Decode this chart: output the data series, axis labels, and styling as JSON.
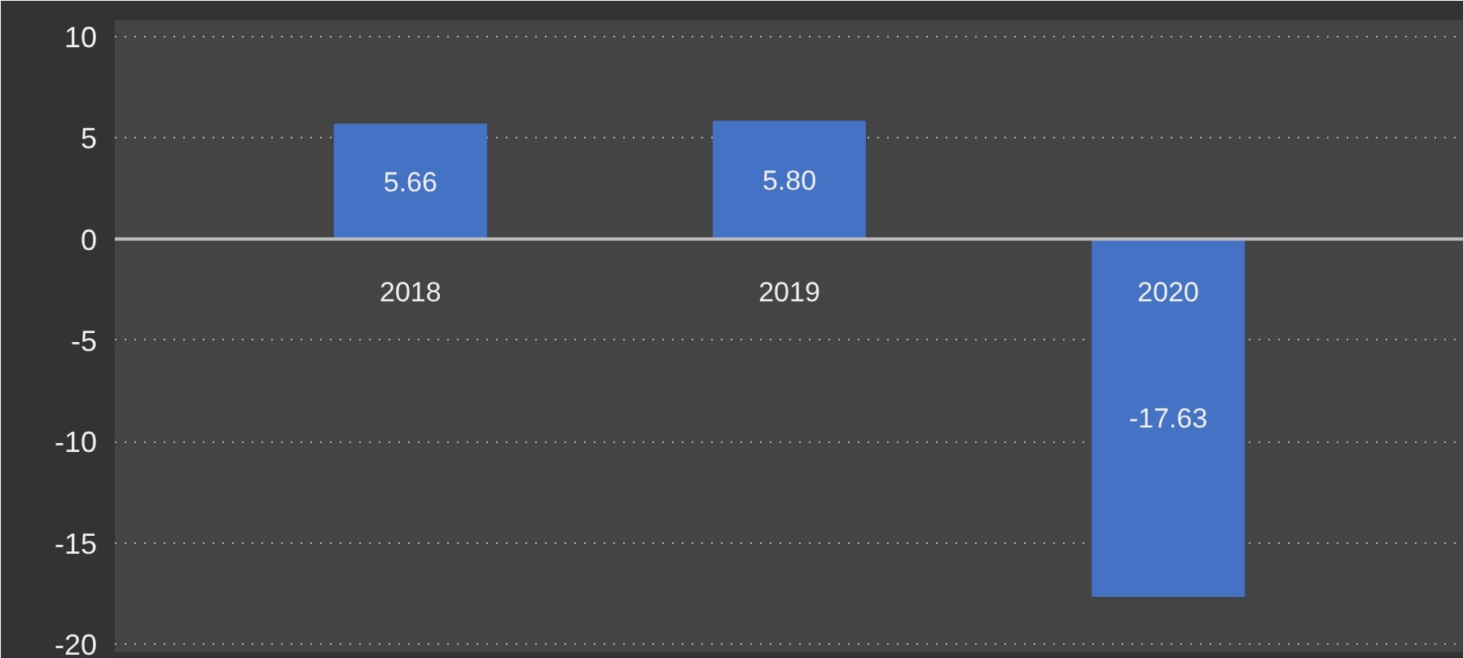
{
  "chart_data": {
    "type": "bar",
    "categories": [
      "2018",
      "2019",
      "2020"
    ],
    "values": [
      5.66,
      5.8,
      -17.63
    ],
    "color": "#4472c4",
    "ylim": [
      -20.4,
      10.8
    ],
    "yticks": [
      -20,
      -15,
      -10,
      -5,
      0,
      5,
      10
    ],
    "grid": "y",
    "value_labels": [
      "5.66",
      "5.80",
      "-17.63"
    ]
  }
}
